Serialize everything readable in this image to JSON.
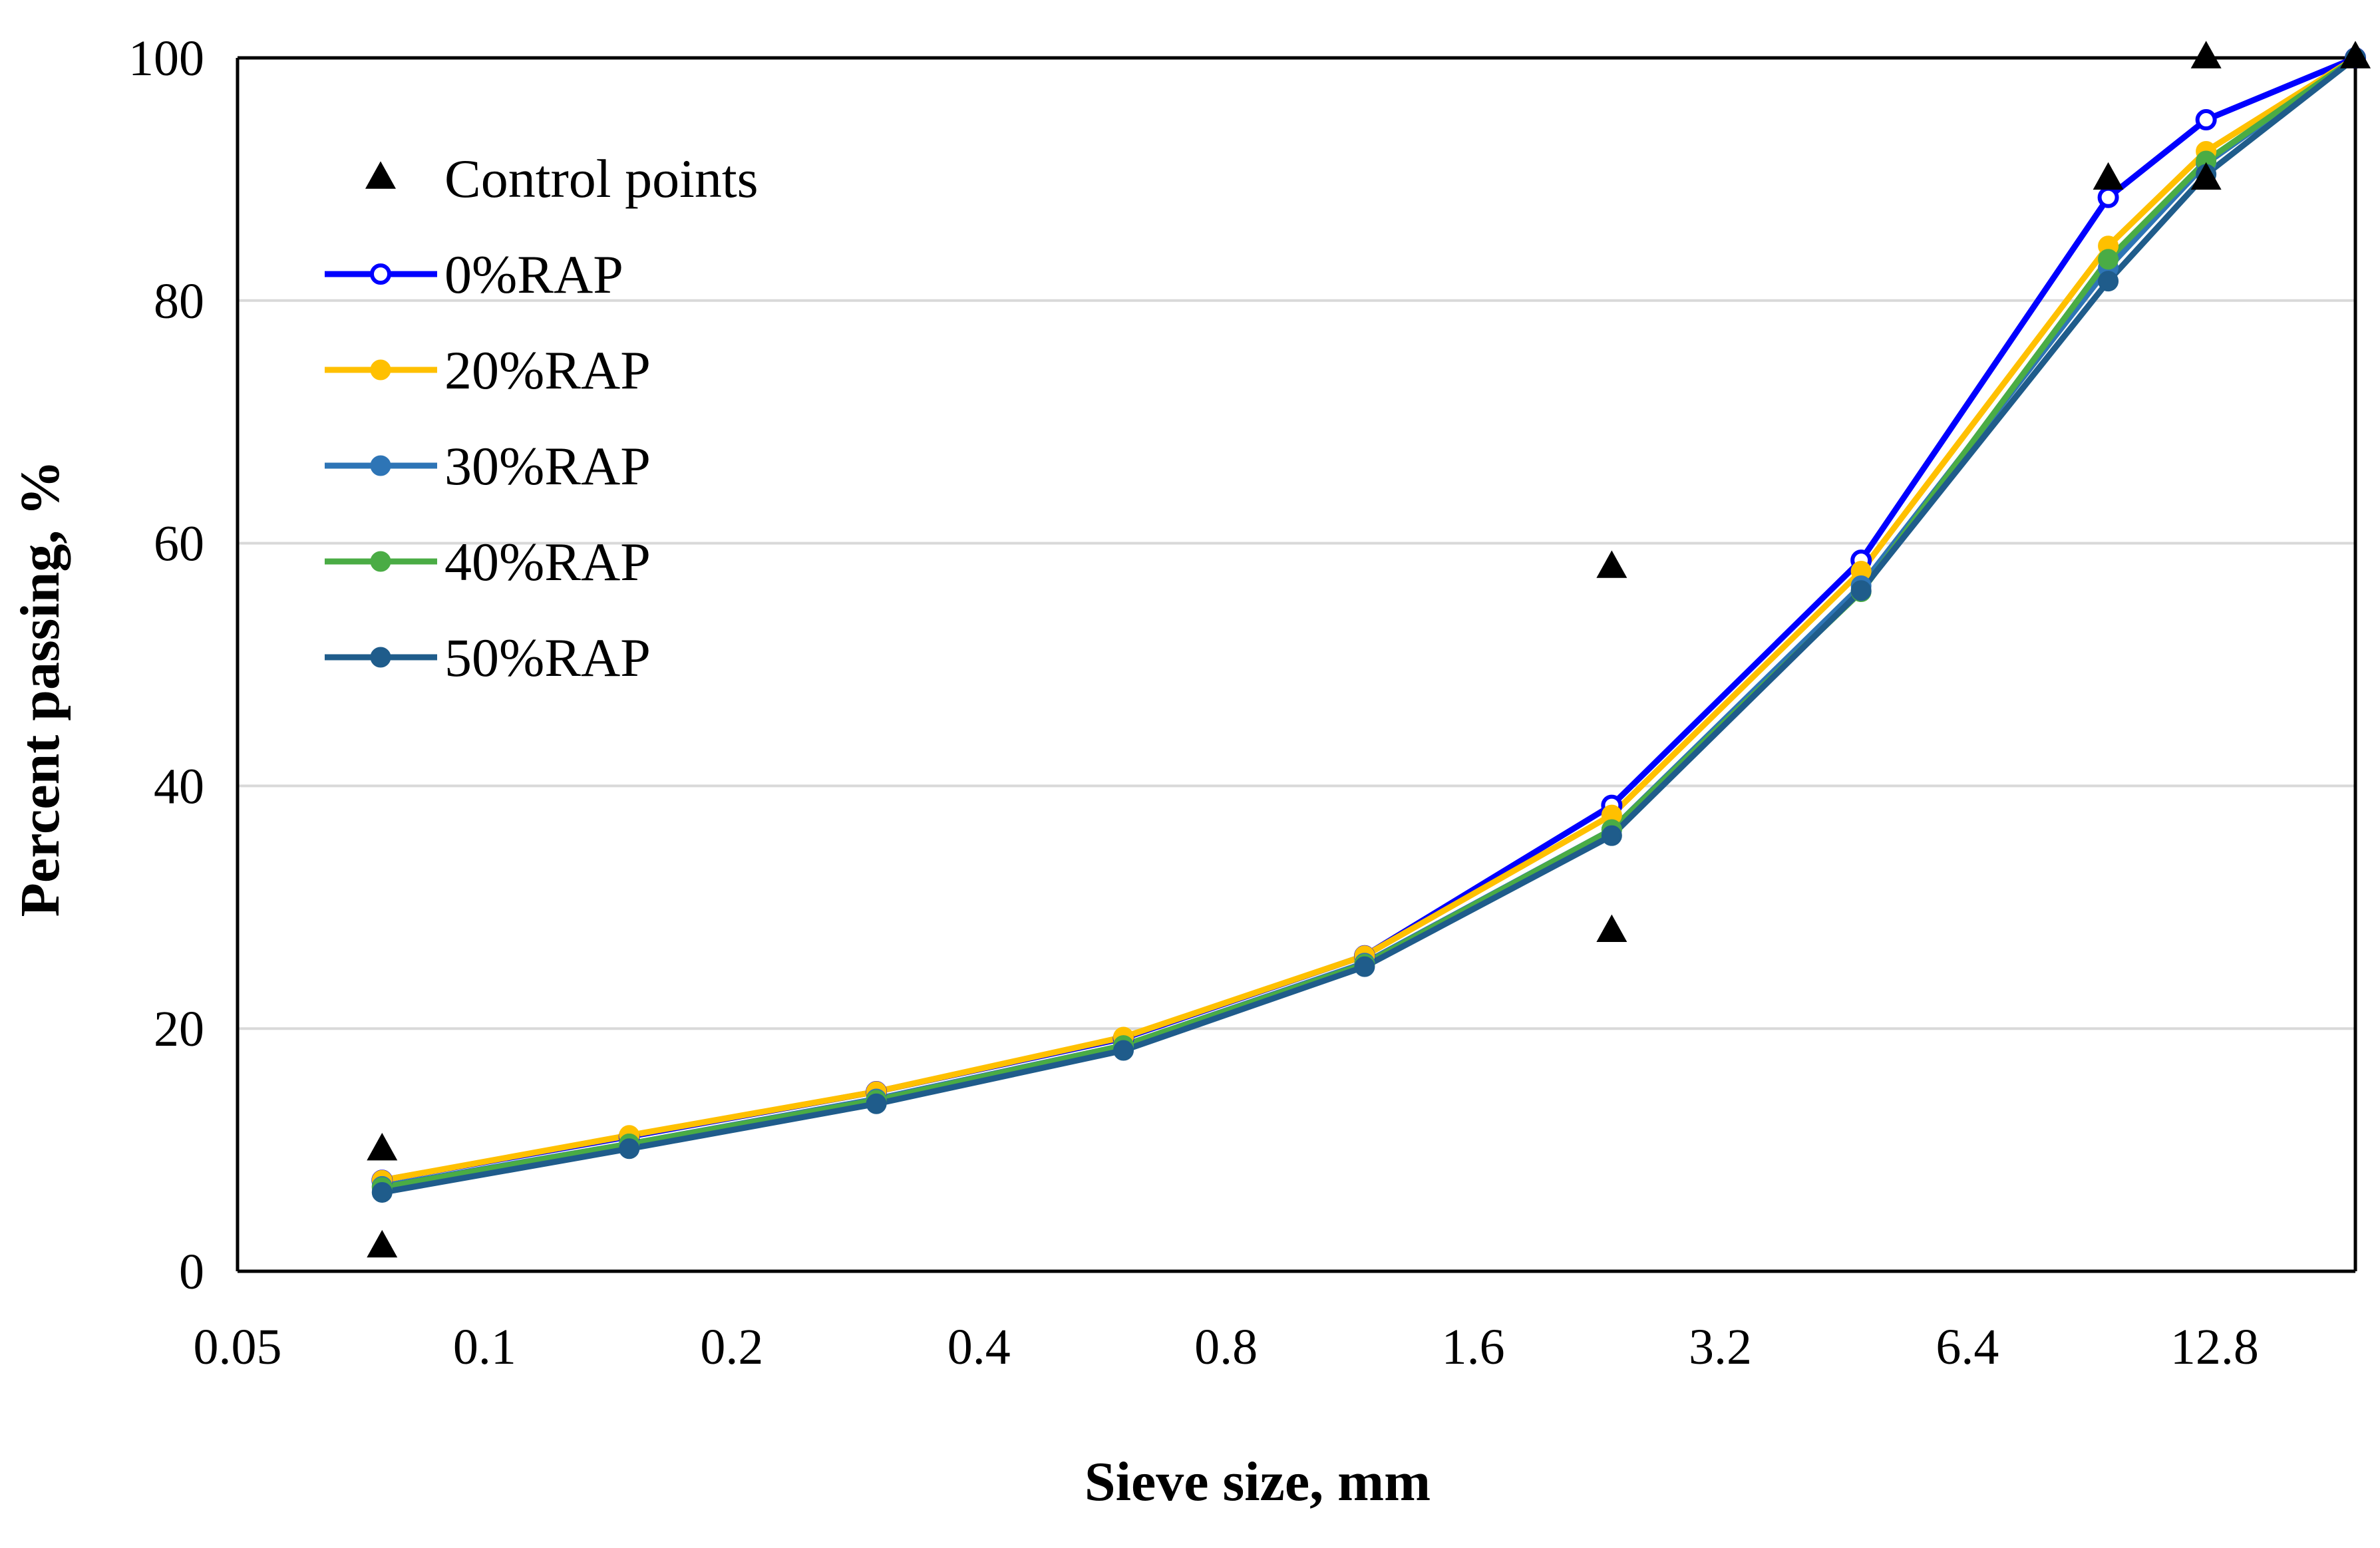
{
  "chart_data": {
    "type": "line",
    "title": "",
    "xlabel": "Sieve size, mm",
    "ylabel": "Percent passing, %",
    "x_scale": "log2",
    "xlim": [
      0.05,
      19
    ],
    "ylim": [
      0,
      100
    ],
    "x_ticks": [
      0.05,
      0.1,
      0.2,
      0.4,
      0.8,
      1.6,
      3.2,
      6.4,
      12.8
    ],
    "x_tick_labels": [
      "0.05",
      "0.1",
      "0.2",
      "0.4",
      "0.8",
      "1.6",
      "3.2",
      "6.4",
      "12.8"
    ],
    "y_ticks": [
      0,
      20,
      40,
      60,
      80,
      100
    ],
    "y_tick_labels": [
      "0",
      "20",
      "40",
      "60",
      "80",
      "100"
    ],
    "grid": "horizontal",
    "legend_position": "top-left",
    "x": [
      0.075,
      0.15,
      0.3,
      0.6,
      1.18,
      2.36,
      4.75,
      9.5,
      12.5,
      19
    ],
    "series": [
      {
        "name": "0%RAP",
        "color": "#0000ff",
        "marker": "hollow-circle",
        "values": [
          7.5,
          11.1,
          14.8,
          19.2,
          26.0,
          38.4,
          58.6,
          88.5,
          94.9,
          100
        ]
      },
      {
        "name": "20%RAP",
        "color": "#ffc000",
        "marker": "circle",
        "values": [
          7.5,
          11.2,
          14.8,
          19.3,
          26.0,
          37.6,
          57.7,
          84.5,
          92.3,
          100
        ]
      },
      {
        "name": "30%RAP",
        "color": "#2e75b6",
        "marker": "circle",
        "values": [
          7.0,
          10.5,
          14.2,
          18.6,
          25.4,
          36.4,
          56.5,
          82.7,
          91.3,
          100
        ]
      },
      {
        "name": "40%RAP",
        "color": "#4aac45",
        "marker": "circle",
        "values": [
          6.9,
          10.5,
          14.1,
          18.6,
          25.3,
          36.4,
          56.0,
          83.4,
          91.5,
          100
        ]
      },
      {
        "name": "50%RAP",
        "color": "#1f5c8b",
        "marker": "circle",
        "values": [
          6.5,
          10.1,
          13.8,
          18.2,
          25.1,
          35.9,
          56.1,
          81.6,
          90.4,
          100
        ]
      }
    ],
    "control_points": {
      "name": "Control points",
      "color": "#000000",
      "marker": "triangle",
      "points": [
        {
          "x": 0.075,
          "y": 10
        },
        {
          "x": 0.075,
          "y": 2
        },
        {
          "x": 2.36,
          "y": 58
        },
        {
          "x": 2.36,
          "y": 28
        },
        {
          "x": 9.5,
          "y": 90
        },
        {
          "x": 12.5,
          "y": 100
        },
        {
          "x": 12.5,
          "y": 90
        },
        {
          "x": 19,
          "y": 100
        }
      ]
    }
  }
}
